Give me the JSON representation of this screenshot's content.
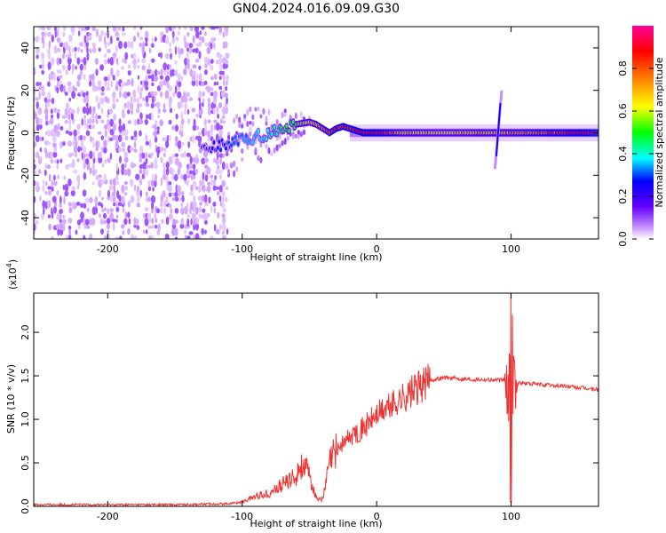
{
  "figure": {
    "title": "GN04.2024.016.09.09.G30"
  },
  "chart_data": [
    {
      "type": "heatmap",
      "name": "spectrogram",
      "title": "GN04.2024.016.09.09.G30",
      "xlabel": "Height of straight line (km)",
      "ylabel": "Frequency (Hz)",
      "xlim": [
        -255,
        165
      ],
      "ylim": [
        -50,
        50
      ],
      "xticks": [
        -200,
        -100,
        0,
        100
      ],
      "yticks": [
        -40,
        -20,
        0,
        20,
        40
      ],
      "colorbar": {
        "label": "Normalized spectral amplitude",
        "range": [
          0.0,
          1.0
        ],
        "ticks": [
          0.0,
          0.2,
          0.4,
          0.6,
          0.8
        ],
        "tick_labels": [
          "0.0",
          "0.2",
          "0.4",
          "0.6",
          "0.8"
        ],
        "colormap": [
          "#ffffff",
          "#cc99ff",
          "#6600ff",
          "#0000ff",
          "#00ffff",
          "#00ff00",
          "#ffff00",
          "#ff8000",
          "#ff0000",
          "#ff0099"
        ]
      },
      "noise_region_km": [
        -255,
        -110
      ],
      "ridge": {
        "x_km": [
          -130,
          -115,
          -100,
          -90,
          -80,
          -70,
          -60,
          -50,
          -45,
          -40,
          -35,
          -30,
          -25,
          -20,
          -15,
          -10,
          0,
          20,
          50,
          80,
          110,
          140,
          165
        ],
        "freq_hz": [
          -8,
          -6,
          -3,
          -2,
          0,
          2,
          4,
          5,
          4,
          2,
          0,
          2,
          3,
          2,
          1,
          0,
          0,
          0,
          0,
          0,
          0,
          0,
          0
        ],
        "amplitude": [
          0.3,
          0.35,
          0.4,
          0.45,
          0.5,
          0.55,
          0.6,
          0.7,
          0.75,
          0.8,
          0.85,
          0.9,
          0.9,
          0.9,
          0.92,
          0.95,
          0.95,
          0.75,
          0.7,
          0.75,
          0.8,
          0.9,
          1.0
        ]
      },
      "spike": {
        "x_km": [
          88,
          93
        ],
        "freq_hz": [
          -17,
          20
        ]
      }
    },
    {
      "type": "line",
      "name": "snr",
      "xlabel": "Height of straight line (km)",
      "ylabel": "SNR (10 * v/v)",
      "y_scale_label": "(x10",
      "y_scale_exponent": "4",
      "xlim": [
        -255,
        165
      ],
      "ylim": [
        0,
        2.45
      ],
      "xticks": [
        -200,
        -100,
        0,
        100
      ],
      "yticks": [
        0.0,
        0.5,
        1.0,
        1.5,
        2.0
      ],
      "ytick_labels": [
        "0.0",
        "0.5",
        "1.0",
        "1.5",
        "2.0"
      ],
      "color": "#ee3333",
      "series": [
        {
          "name": "SNR",
          "x": [
            -255,
            -200,
            -150,
            -110,
            -100,
            -90,
            -80,
            -70,
            -60,
            -55,
            -50,
            -45,
            -40,
            -35,
            -30,
            -20,
            -10,
            0,
            10,
            20,
            30,
            40,
            50,
            60,
            70,
            80,
            90,
            95,
            105,
            120,
            140,
            165
          ],
          "y": [
            0.02,
            0.02,
            0.02,
            0.03,
            0.05,
            0.12,
            0.15,
            0.25,
            0.35,
            0.5,
            0.35,
            0.1,
            0.08,
            0.5,
            0.65,
            0.8,
            0.9,
            1.05,
            1.15,
            1.25,
            1.35,
            1.45,
            1.48,
            1.47,
            1.46,
            1.46,
            1.45,
            1.45,
            1.42,
            1.4,
            1.38,
            1.34
          ]
        }
      ],
      "burst": {
        "x_km": [
          95,
          105
        ],
        "y_max": 2.45,
        "y_min": 0.05
      }
    }
  ]
}
